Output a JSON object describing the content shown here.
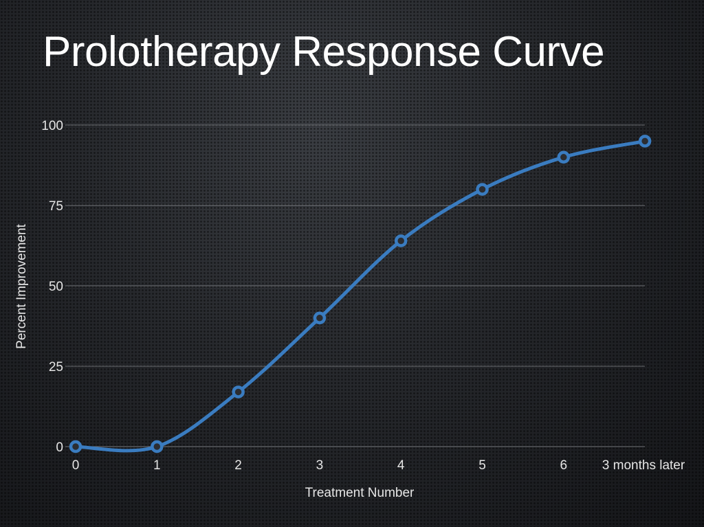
{
  "slide": {
    "title": "Prolotherapy Response Curve"
  },
  "chart_data": {
    "type": "line",
    "categories": [
      "0",
      "1",
      "2",
      "3",
      "4",
      "5",
      "6",
      "3 months later"
    ],
    "series": [
      {
        "values": [
          0,
          0,
          17,
          40,
          64,
          80,
          90,
          95
        ]
      }
    ],
    "xlabel": "Treatment Number",
    "ylabel": "Percent Improvement",
    "ylim": [
      0,
      100
    ],
    "yticks": [
      0,
      25,
      50,
      75,
      100
    ],
    "grid": true,
    "smooth": true,
    "colors": {
      "line": "#3a7cc0",
      "marker_fill": "#2b2d31",
      "grid": "#8a8c90"
    }
  }
}
